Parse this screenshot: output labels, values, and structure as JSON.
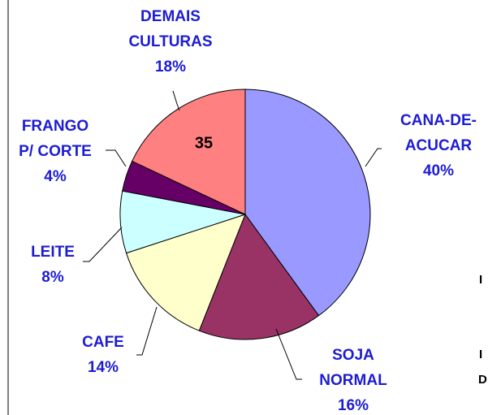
{
  "chart_data": {
    "type": "pie",
    "categories": [
      "CANA-DE-ACUCAR",
      "SOJA NORMAL",
      "CAFE",
      "LEITE",
      "FRANGO P/ CORTE",
      "DEMAIS CULTURAS"
    ],
    "values": [
      40,
      16,
      14,
      8,
      4,
      18
    ],
    "value_labels": [
      "40%",
      "16%",
      "14%",
      "8%",
      "4%",
      "18%"
    ],
    "colors": [
      "#9999ff",
      "#993366",
      "#ffffcc",
      "#ccffff",
      "#660066",
      "#ff8080"
    ],
    "annotation": "35",
    "side_texts": [
      "I",
      "I",
      "D"
    ]
  }
}
